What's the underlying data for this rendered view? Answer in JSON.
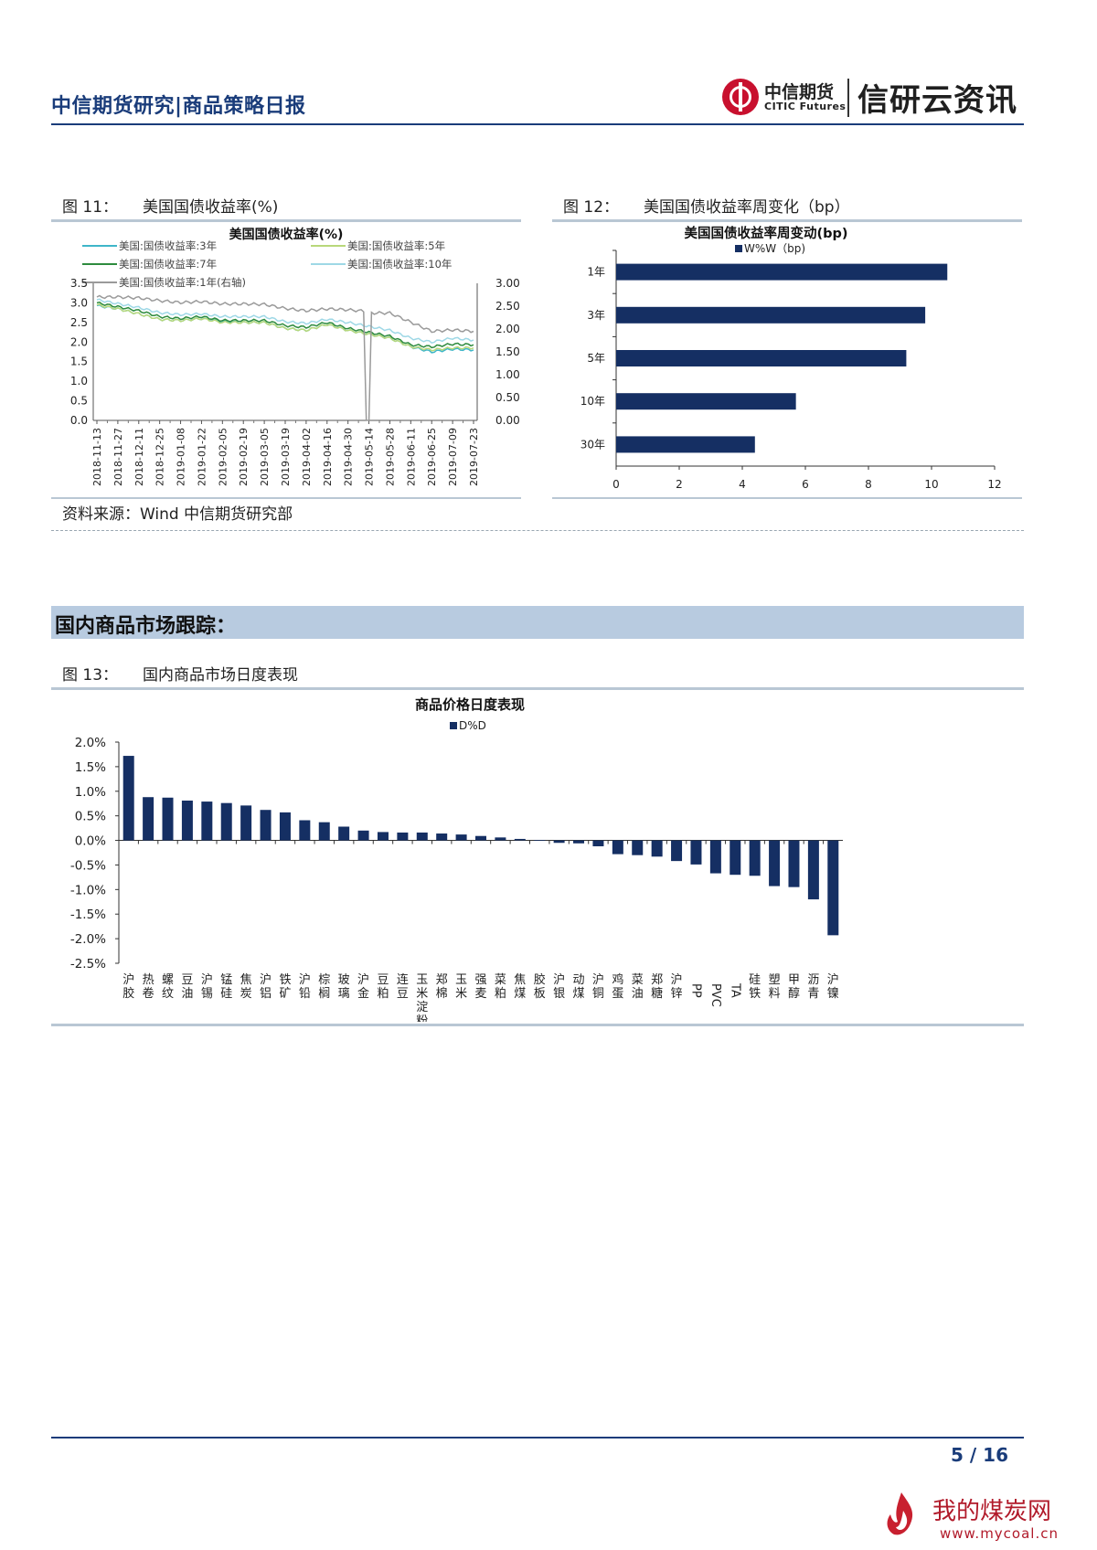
{
  "header": {
    "title": "中信期货研究|商品策略日报",
    "logo_cn": "中信期货",
    "logo_en": "CITIC Futures",
    "brand": "信研云资讯"
  },
  "fig11": {
    "label": "图 11：",
    "caption": "美国国债收益率(%)"
  },
  "fig12": {
    "label": "图 12：",
    "caption": "美国国债收益率周变化（bp）"
  },
  "source": "资料来源：Wind  中信期货研究部",
  "section_title": "国内商品市场跟踪：",
  "fig13": {
    "label": "图 13：",
    "caption": "国内商品市场日度表现"
  },
  "footer": {
    "page": "5 / 16"
  },
  "watermark": {
    "cn": "我的煤炭网",
    "url": "www.mycoal.cn"
  },
  "chart_data": [
    {
      "type": "line",
      "title": "美国国债收益率(%)",
      "x_ticks": [
        "2018-11-13",
        "2018-11-27",
        "2018-12-11",
        "2018-12-25",
        "2019-01-08",
        "2019-01-22",
        "2019-02-05",
        "2019-02-19",
        "2019-03-05",
        "2019-03-19",
        "2019-04-02",
        "2019-04-16",
        "2019-04-30",
        "2019-05-14",
        "2019-05-28",
        "2019-06-11",
        "2019-06-25",
        "2019-07-09",
        "2019-07-23"
      ],
      "ylim": [
        0,
        3.5
      ],
      "y_ticks": [
        "0.0",
        "0.5",
        "1.0",
        "1.5",
        "2.0",
        "2.5",
        "3.0",
        "3.5"
      ],
      "y2lim": [
        0,
        3.0
      ],
      "y2_ticks": [
        "0.00",
        "0.50",
        "1.00",
        "1.50",
        "2.00",
        "2.50",
        "3.00"
      ],
      "legend": "top",
      "series": [
        {
          "name": "美国:国债收益率:3年",
          "color": "#3fb6c9",
          "axis": "left",
          "values": [
            2.93,
            2.85,
            2.72,
            2.58,
            2.55,
            2.6,
            2.52,
            2.5,
            2.5,
            2.35,
            2.3,
            2.45,
            2.3,
            2.2,
            2.1,
            1.88,
            1.75,
            1.82,
            1.8
          ]
        },
        {
          "name": "美国:国债收益率:5年",
          "color": "#b8d87a",
          "axis": "left",
          "values": [
            2.95,
            2.85,
            2.72,
            2.58,
            2.55,
            2.6,
            2.5,
            2.5,
            2.5,
            2.35,
            2.3,
            2.45,
            2.3,
            2.2,
            2.1,
            1.88,
            1.8,
            1.85,
            1.85
          ]
        },
        {
          "name": "美国:国债收益率:7年",
          "color": "#2e8b3e",
          "axis": "left",
          "values": [
            3.0,
            2.9,
            2.8,
            2.65,
            2.6,
            2.65,
            2.55,
            2.55,
            2.55,
            2.42,
            2.38,
            2.5,
            2.35,
            2.25,
            2.15,
            1.93,
            1.88,
            1.95,
            1.93
          ]
        },
        {
          "name": "美国:国债收益率:10年",
          "color": "#9ed8e6",
          "axis": "left",
          "values": [
            3.08,
            2.98,
            2.88,
            2.75,
            2.7,
            2.72,
            2.65,
            2.65,
            2.65,
            2.52,
            2.48,
            2.58,
            2.5,
            2.4,
            2.3,
            2.1,
            2.0,
            2.1,
            2.05
          ]
        },
        {
          "name": "美国:国债收益率:1年(右轴)",
          "color": "#9a9a9a",
          "axis": "right",
          "values": [
            2.7,
            2.7,
            2.68,
            2.62,
            2.58,
            2.6,
            2.55,
            2.55,
            2.54,
            2.45,
            2.4,
            2.44,
            2.42,
            0.0,
            2.35,
            2.15,
            1.95,
            1.98,
            1.95
          ]
        }
      ]
    },
    {
      "type": "bar",
      "orientation": "horizontal",
      "title": "美国国债收益率周变动(bp)",
      "legend": "W%W（bp)",
      "categories": [
        "1年",
        "3年",
        "5年",
        "10年",
        "30年"
      ],
      "values": [
        10.5,
        9.8,
        9.2,
        5.7,
        4.4
      ],
      "xlim": [
        0,
        12
      ],
      "x_ticks": [
        "0",
        "2",
        "4",
        "6",
        "8",
        "10",
        "12"
      ],
      "color": "#152f63"
    },
    {
      "type": "bar",
      "title": "商品价格日度表现",
      "legend": "D%D",
      "categories": [
        "沪胶",
        "热卷",
        "螺纹",
        "豆油",
        "沪锡",
        "锰硅",
        "焦炭",
        "沪铝",
        "铁矿",
        "沪铅",
        "棕榈",
        "玻璃",
        "沪金",
        "豆粕",
        "连豆",
        "玉米淀粉",
        "郑棉",
        "玉米",
        "强麦",
        "菜粕",
        "焦煤",
        "胶板",
        "沪银",
        "动煤",
        "沪铜",
        "鸡蛋",
        "菜油",
        "郑糖",
        "沪锌",
        "PP",
        "PVC",
        "TA",
        "硅铁",
        "塑料",
        "甲醇",
        "沥青",
        "沪镍"
      ],
      "values": [
        1.72,
        0.88,
        0.87,
        0.81,
        0.79,
        0.76,
        0.71,
        0.62,
        0.57,
        0.41,
        0.37,
        0.28,
        0.2,
        0.17,
        0.16,
        0.16,
        0.14,
        0.12,
        0.09,
        0.06,
        0.03,
        0.01,
        -0.05,
        -0.06,
        -0.12,
        -0.28,
        -0.3,
        -0.33,
        -0.42,
        -0.49,
        -0.67,
        -0.7,
        -0.72,
        -0.93,
        -0.95,
        -1.2,
        -1.93
      ],
      "ylim": [
        -2.5,
        2.0
      ],
      "y_ticks": [
        "2.0%",
        "1.5%",
        "1.0%",
        "0.5%",
        "0.0%",
        "-0.5%",
        "-1.0%",
        "-1.5%",
        "-2.0%",
        "-2.5%"
      ],
      "color": "#152f63"
    }
  ]
}
